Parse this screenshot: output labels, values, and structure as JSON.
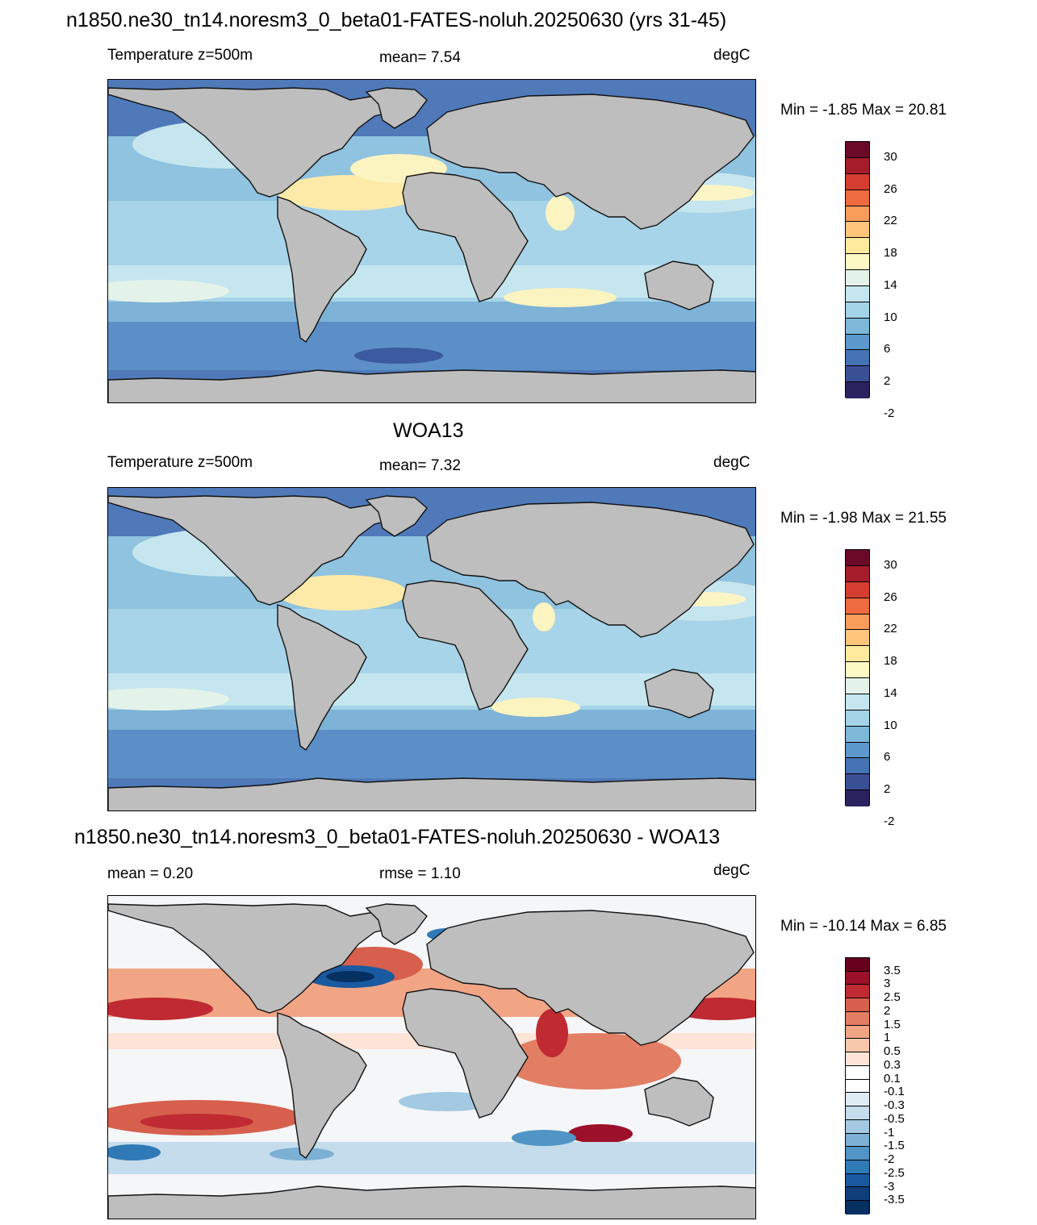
{
  "panels": [
    {
      "id": "model",
      "title": "n1850.ne30_tn14.noresm3_0_beta01-FATES-noluh.20250630 (yrs 31-45)",
      "left_label": "Temperature z=500m",
      "center_label": "mean=   7.54",
      "units": "degC",
      "minmax": "Min =  -1.85 Max =  20.81"
    },
    {
      "id": "obs",
      "title": "WOA13",
      "left_label": "Temperature z=500m",
      "center_label": "mean=   7.32",
      "units": "degC",
      "minmax": "Min =  -1.98 Max =  21.55"
    },
    {
      "id": "diff",
      "title": "n1850.ne30_tn14.noresm3_0_beta01-FATES-noluh.20250630 - WOA13",
      "left_label": "mean =   0.20",
      "center_label": "rmse =   1.10",
      "units": "degC",
      "minmax": "Min = -10.14 Max =   6.85"
    }
  ],
  "colorbars": {
    "temperature": {
      "colors": [
        "#6b0a28",
        "#a51d2a",
        "#d43d2f",
        "#ee6a3f",
        "#f99d5a",
        "#fdc67c",
        "#fee99c",
        "#fbf8c3",
        "#e4f3ea",
        "#c6e6ef",
        "#a3d3e6",
        "#7eb8d9",
        "#5c98cb",
        "#4573b3",
        "#3b4f95",
        "#2b2360"
      ],
      "labels": [
        "30",
        "26",
        "22",
        "18",
        "14",
        "10",
        "6",
        "2",
        "-2"
      ]
    },
    "difference": {
      "colors": [
        "#67001f",
        "#9c1029",
        "#bf2a33",
        "#d6604d",
        "#e27e64",
        "#f1a585",
        "#f8c8ad",
        "#fde4d6",
        "#ffffff",
        "#ffffff",
        "#e0ecf4",
        "#c4dcec",
        "#a3cae2",
        "#7cb0d5",
        "#5095c5",
        "#2f79b6",
        "#1a5aa0",
        "#0f3e7c",
        "#053061"
      ],
      "labels": [
        "3.5",
        "3",
        "2.5",
        "2",
        "1.5",
        "1",
        "0.5",
        "0.3",
        "0.1",
        "-0.1",
        "-0.3",
        "-0.5",
        "-1",
        "-1.5",
        "-2",
        "-2.5",
        "-3",
        "-3.5"
      ]
    }
  },
  "land_color": "#bebebe"
}
